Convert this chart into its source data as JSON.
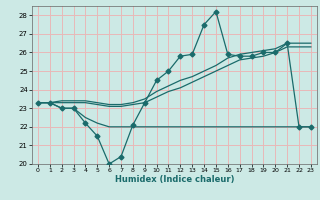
{
  "xlabel": "Humidex (Indice chaleur)",
  "xlim": [
    -0.5,
    23.5
  ],
  "ylim": [
    20,
    28.5
  ],
  "yticks": [
    20,
    21,
    22,
    23,
    24,
    25,
    26,
    27,
    28
  ],
  "xticks": [
    0,
    1,
    2,
    3,
    4,
    5,
    6,
    7,
    8,
    9,
    10,
    11,
    12,
    13,
    14,
    15,
    16,
    17,
    18,
    19,
    20,
    21,
    22,
    23
  ],
  "background_color": "#cce9e5",
  "grid_color": "#e8b8b8",
  "line_color": "#1a6b6b",
  "line1_x": [
    0,
    1,
    2,
    3,
    4,
    5,
    6,
    7,
    8,
    9,
    10,
    11,
    12,
    13,
    14,
    15,
    16,
    17,
    18,
    19,
    20,
    21,
    22,
    23
  ],
  "line1_y": [
    23.3,
    23.3,
    23.0,
    23.0,
    22.2,
    21.5,
    20.0,
    20.4,
    22.1,
    23.3,
    24.5,
    25.0,
    25.8,
    25.9,
    27.5,
    28.2,
    25.9,
    25.8,
    25.8,
    26.0,
    26.0,
    26.5,
    22.0,
    22.0
  ],
  "line2_x": [
    0,
    1,
    2,
    3,
    4,
    5,
    6,
    7,
    8,
    9,
    10,
    11,
    12,
    13,
    14,
    15,
    16,
    17,
    18,
    19,
    20,
    21,
    22,
    23
  ],
  "line2_y": [
    23.3,
    23.3,
    23.3,
    23.3,
    23.3,
    23.2,
    23.1,
    23.1,
    23.2,
    23.3,
    23.6,
    23.9,
    24.1,
    24.4,
    24.7,
    25.0,
    25.3,
    25.6,
    25.7,
    25.8,
    26.0,
    26.3,
    26.3,
    26.3
  ],
  "line3_x": [
    0,
    1,
    2,
    3,
    4,
    5,
    6,
    7,
    8,
    9,
    10,
    11,
    12,
    13,
    14,
    15,
    16,
    17,
    18,
    19,
    20,
    21,
    22,
    23
  ],
  "line3_y": [
    23.3,
    23.3,
    23.4,
    23.4,
    23.4,
    23.3,
    23.2,
    23.2,
    23.3,
    23.5,
    23.9,
    24.2,
    24.5,
    24.7,
    25.0,
    25.3,
    25.7,
    25.9,
    26.0,
    26.1,
    26.2,
    26.5,
    26.5,
    26.5
  ],
  "line4_x": [
    0,
    1,
    2,
    3,
    4,
    5,
    6,
    7,
    8,
    9,
    10,
    11,
    12,
    13,
    14,
    15,
    16,
    17,
    18,
    19,
    20,
    21,
    22,
    23
  ],
  "line4_y": [
    23.3,
    23.3,
    23.0,
    23.0,
    22.5,
    22.2,
    22.0,
    22.0,
    22.0,
    22.0,
    22.0,
    22.0,
    22.0,
    22.0,
    22.0,
    22.0,
    22.0,
    22.0,
    22.0,
    22.0,
    22.0,
    22.0,
    22.0,
    22.0
  ]
}
